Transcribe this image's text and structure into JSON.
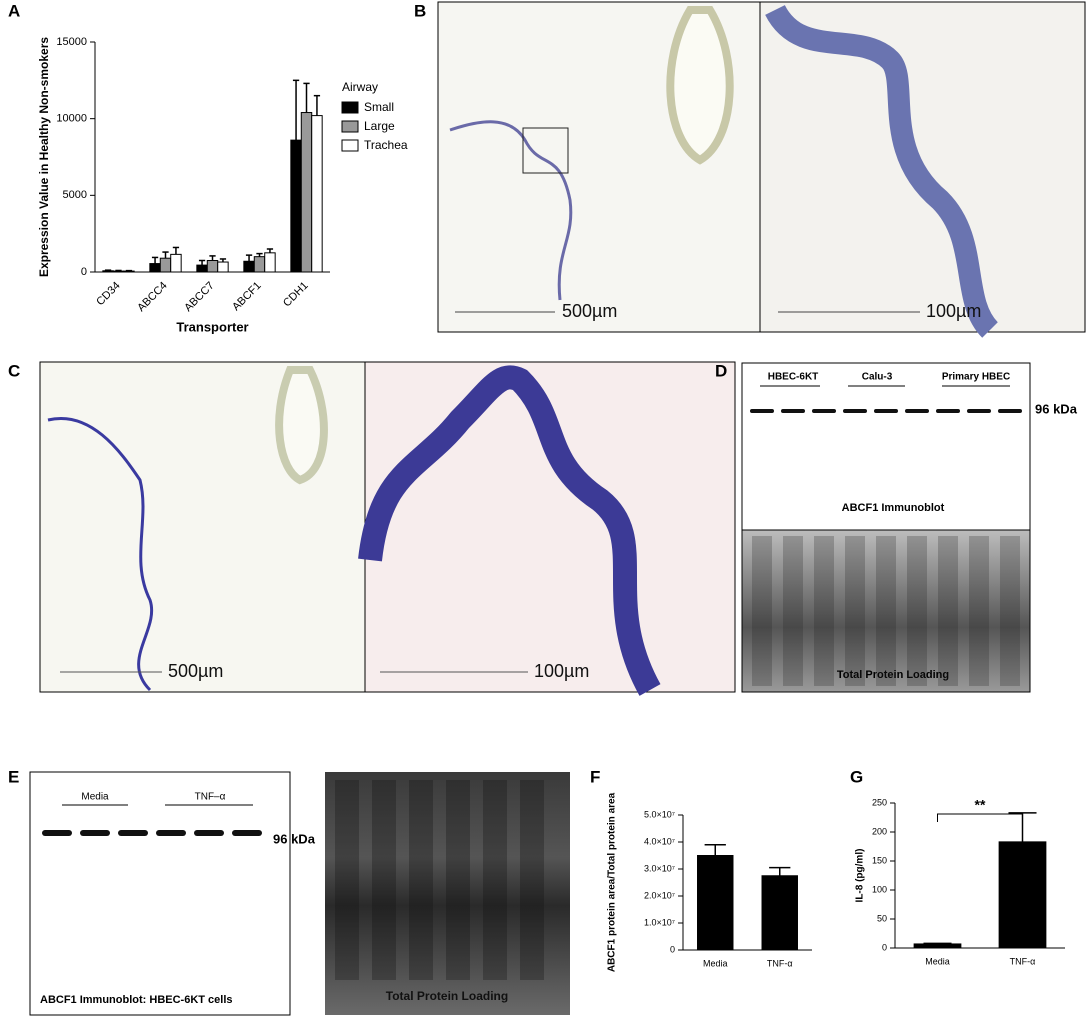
{
  "chart_data": [
    {
      "type": "bar",
      "y_label": "Expression Value in Healthy Non-smokers",
      "x_label": "Transporter",
      "legend_title": "Airway",
      "categories": [
        "CD34",
        "ABCC4",
        "ABCC7",
        "ABCF1",
        "CDH1"
      ],
      "series": [
        {
          "name": "Small",
          "color": "#000000",
          "values": [
            80,
            550,
            450,
            700,
            8600
          ],
          "errors": [
            40,
            400,
            300,
            400,
            3900
          ]
        },
        {
          "name": "Large",
          "color": "#999999",
          "values": [
            60,
            900,
            750,
            1000,
            10400
          ],
          "errors": [
            40,
            400,
            300,
            200,
            1900
          ]
        },
        {
          "name": "Trachea",
          "color": "#ffffff",
          "values": [
            60,
            1150,
            650,
            1250,
            10200
          ],
          "errors": [
            30,
            450,
            200,
            250,
            1300
          ]
        }
      ],
      "ylim": [
        0,
        15000
      ],
      "yticks": [
        0,
        5000,
        10000,
        15000
      ],
      "grid": false
    },
    {
      "type": "bar",
      "y_label": "ABCF1 protein area/Total protein area",
      "categories": [
        "Media",
        "TNF-α"
      ],
      "series": [
        {
          "color": "#000000",
          "values": [
            35000000,
            27500000
          ],
          "errors": [
            4000000,
            3000000
          ]
        }
      ],
      "ylim": [
        0,
        50000000
      ],
      "yticks": [
        0,
        {
          "value": 10000000,
          "label": "1.0×10⁷"
        },
        {
          "value": 20000000,
          "label": "2.0×10⁷"
        },
        {
          "value": 30000000,
          "label": "3.0×10⁷"
        },
        {
          "value": 40000000,
          "label": "4.0×10⁷"
        },
        {
          "value": 50000000,
          "label": "5.0×10⁷"
        }
      ],
      "grid": false
    },
    {
      "type": "bar",
      "y_label": "IL-8 (pg/ml)",
      "annotation": "**",
      "categories": [
        "Media",
        "TNF-α"
      ],
      "series": [
        {
          "color": "#000000",
          "values": [
            7,
            183
          ],
          "errors": [
            1,
            50
          ]
        }
      ],
      "ylim": [
        0,
        250
      ],
      "yticks": [
        0,
        50,
        100,
        150,
        200,
        250
      ],
      "grid": false
    }
  ],
  "figure": {
    "letters": [
      "A",
      "B",
      "C",
      "D",
      "E",
      "F",
      "G"
    ],
    "b_scale": [
      "500µm",
      "100µm"
    ],
    "c_scale": [
      "500µm",
      "100µm"
    ],
    "d": {
      "groups": [
        "HBEC-6KT",
        "Calu-3",
        "Primary HBEC"
      ],
      "marker": "96 kDa",
      "blot": "ABCF1 Immunoblot",
      "loading": "Total Protein Loading"
    },
    "e": {
      "groups": [
        "Media",
        "TNF–α"
      ],
      "marker": "96 kDa",
      "blot": "ABCF1 Immunoblot: HBEC-6KT cells",
      "loading": "Total Protein Loading"
    }
  }
}
